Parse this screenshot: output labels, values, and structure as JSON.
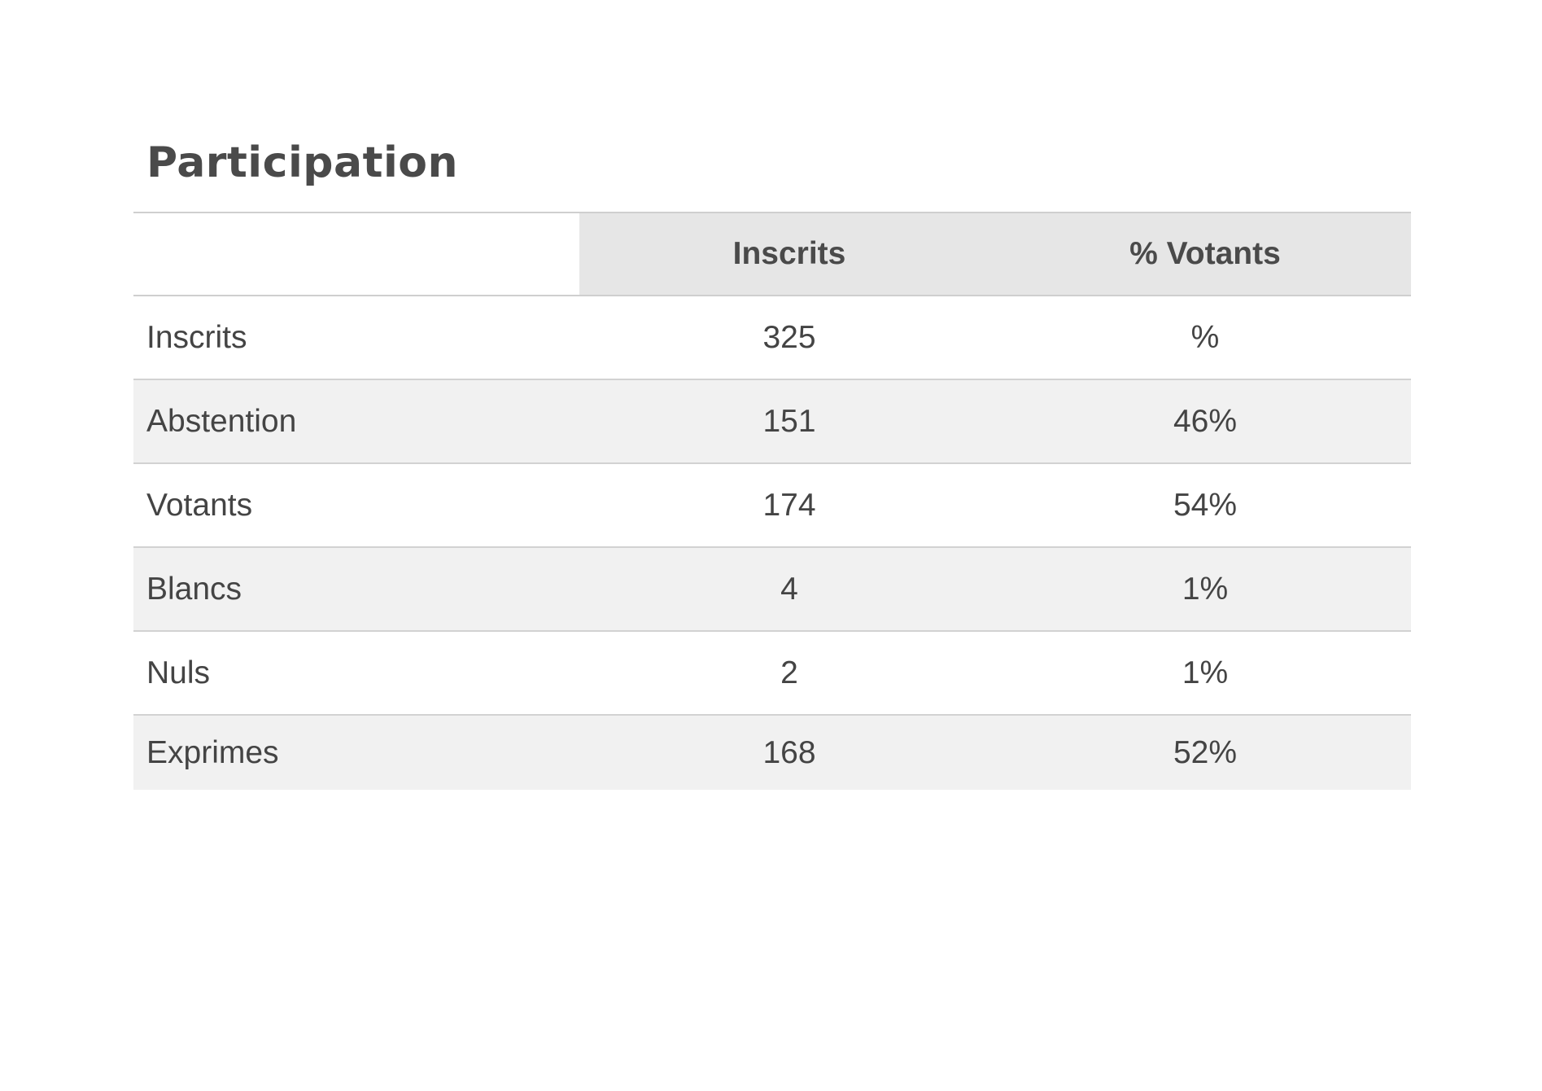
{
  "section": {
    "title": "Participation"
  },
  "table": {
    "headers": [
      "",
      "Inscrits",
      "% Votants"
    ],
    "rows": [
      {
        "label": "Inscrits",
        "count": "325",
        "percent": "%"
      },
      {
        "label": "Abstention",
        "count": "151",
        "percent": "46%"
      },
      {
        "label": "Votants",
        "count": "174",
        "percent": "54%"
      },
      {
        "label": "Blancs",
        "count": "4",
        "percent": "1%"
      },
      {
        "label": "Nuls",
        "count": "2",
        "percent": "1%"
      },
      {
        "label": "Exprimes",
        "count": "168",
        "percent": "52%"
      }
    ]
  },
  "colors": {
    "header_bg": "#e6e6e6",
    "stripe_bg": "#f1f1f1",
    "text": "#444444",
    "rule": "#cfcfcf"
  }
}
